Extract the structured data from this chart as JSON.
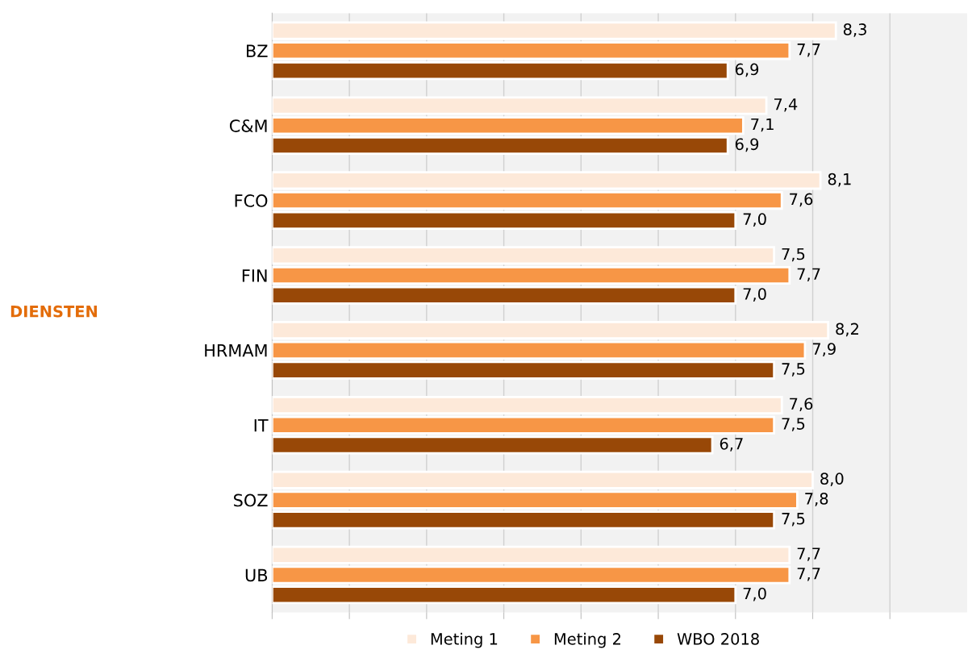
{
  "chart_data": {
    "type": "bar",
    "orientation": "horizontal",
    "annotations": [
      "DIENSTEN"
    ],
    "categories": [
      "BZ",
      "C&M",
      "FCO",
      "FIN",
      "HRMAM",
      "IT",
      "SOZ",
      "UB"
    ],
    "series": [
      {
        "name": "Meting 1",
        "color": "#fde9d9",
        "values": [
          8.3,
          7.4,
          8.1,
          7.5,
          8.2,
          7.6,
          8.0,
          7.7
        ],
        "value_labels": [
          "8,3",
          "7,4",
          "8,1",
          "7,5",
          "8,2",
          "7,6",
          "8,0",
          "7,7"
        ]
      },
      {
        "name": "Meting 2",
        "color": "#f79646",
        "values": [
          7.7,
          7.1,
          7.6,
          7.7,
          7.9,
          7.5,
          7.8,
          7.7
        ],
        "value_labels": [
          "7,7",
          "7,1",
          "7,6",
          "7,7",
          "7,9",
          "7,5",
          "7,8",
          "7,7"
        ]
      },
      {
        "name": "WBO 2018",
        "color": "#984807",
        "values": [
          6.9,
          6.9,
          7.0,
          7.0,
          7.5,
          6.7,
          7.5,
          7.0
        ],
        "value_labels": [
          "6,9",
          "6,9",
          "7,0",
          "7,0",
          "7,5",
          "6,7",
          "7,5",
          "7,0"
        ]
      }
    ],
    "xlim": [
      1,
      10
    ],
    "xticks": [
      {
        "value": 1,
        "label": null
      },
      {
        "value": 2,
        "label": null
      },
      {
        "value": 3,
        "label": null
      },
      {
        "value": 4,
        "label": null
      },
      {
        "value": 5,
        "label": null
      },
      {
        "value": 6,
        "label": null
      },
      {
        "value": 7,
        "label": null
      },
      {
        "value": 8,
        "label": null
      },
      {
        "value": 9,
        "label": null
      }
    ],
    "tick_labels": "y",
    "grid": "x",
    "legend": "bottom"
  }
}
